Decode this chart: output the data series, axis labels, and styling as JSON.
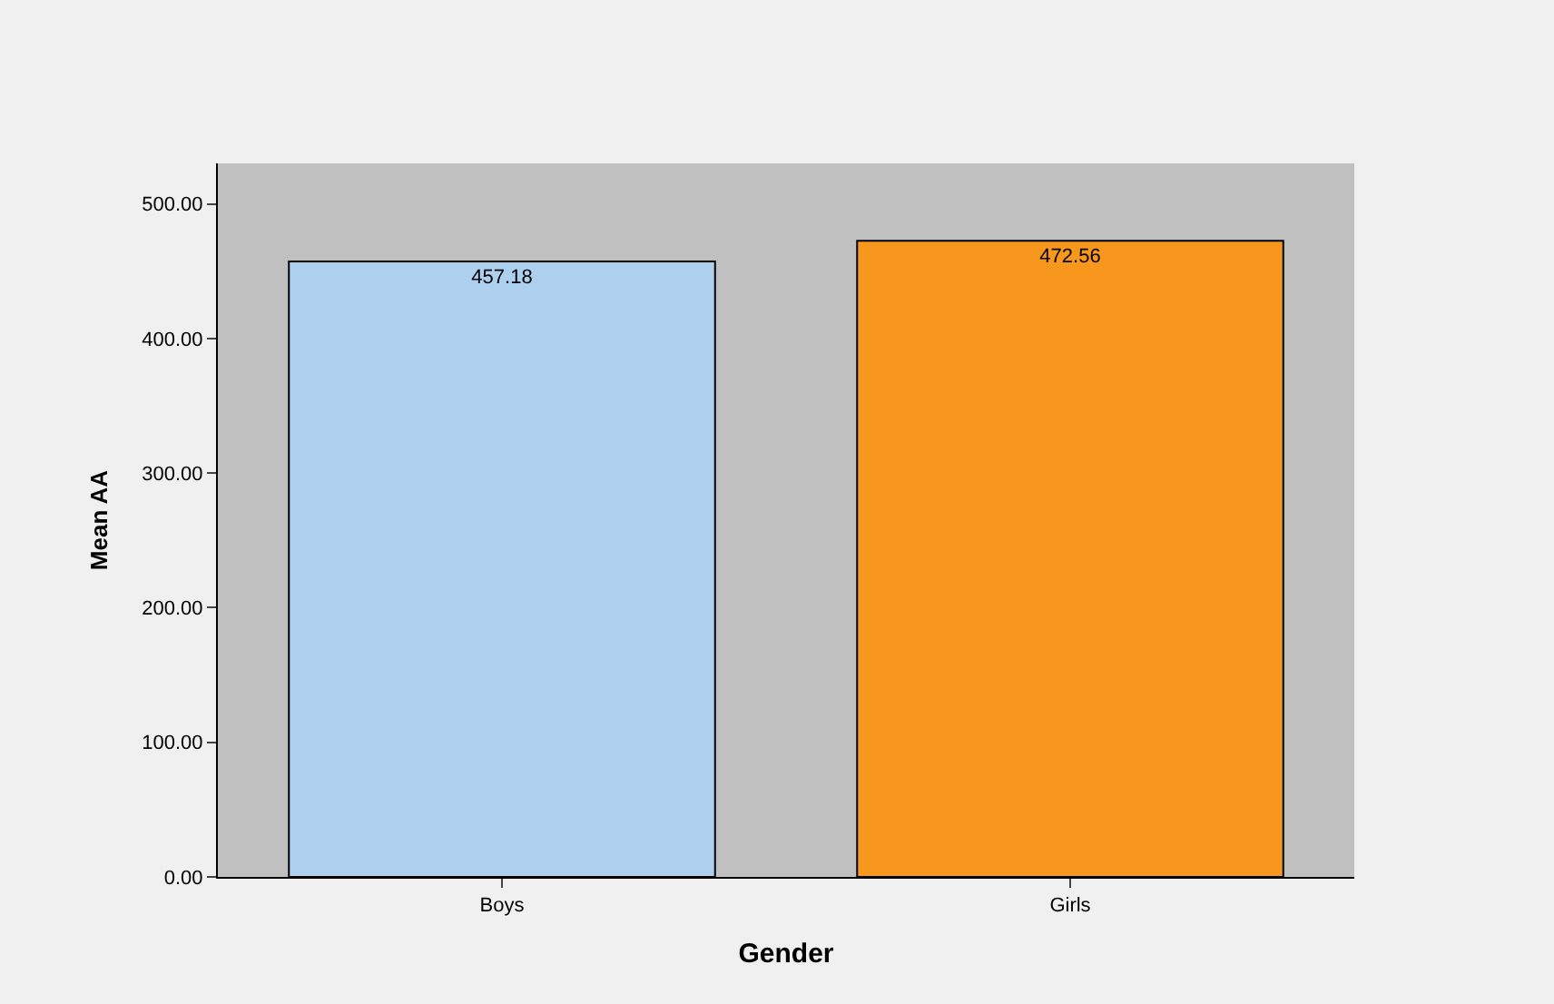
{
  "chart_data": {
    "type": "bar",
    "xlabel": "Gender",
    "ylabel": "Mean AA",
    "categories": [
      "Boys",
      "Girls"
    ],
    "values": [
      457.18,
      472.56
    ],
    "colors": [
      "#acd0ee",
      "#f7971e"
    ],
    "ylim": [
      0,
      530
    ],
    "yticks": [
      {
        "value": 0,
        "label": "0.00"
      },
      {
        "value": 100,
        "label": "100.00"
      },
      {
        "value": 200,
        "label": "200.00"
      },
      {
        "value": 300,
        "label": "300.00"
      },
      {
        "value": 400,
        "label": "400.00"
      },
      {
        "value": 500,
        "label": "500.00"
      }
    ],
    "data_labels": true,
    "grid": false,
    "legend": false
  }
}
